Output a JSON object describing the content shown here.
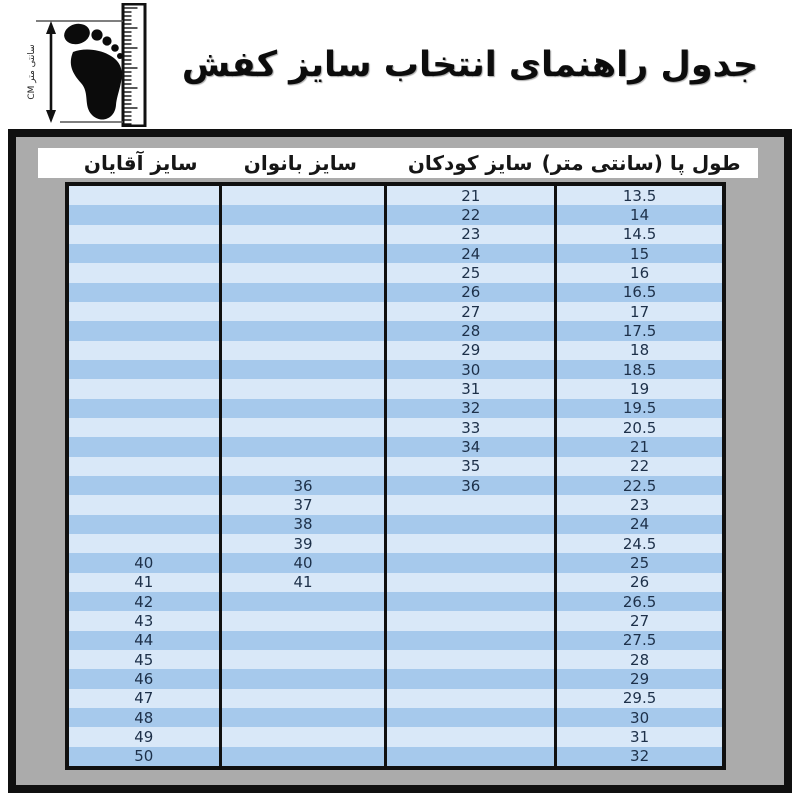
{
  "title": "جدول راهنمای انتخاب سایز کفش",
  "measure_icon": {
    "name": "foot-with-ruler",
    "cm_label": "CM سانتی متر"
  },
  "colors": {
    "row_light": "#d9e8f8",
    "row_dark": "#a6c9ec",
    "frame_gray": "#ababab",
    "border_black": "#101010",
    "number_text": "#1d3049"
  },
  "table": {
    "headers": [
      {
        "key": "foot",
        "label": "طول پا (سانتی متر)"
      },
      {
        "key": "kids",
        "label": "سایز کودکان"
      },
      {
        "key": "women",
        "label": "سایز بانوان"
      },
      {
        "key": "men",
        "label": "سایز آقایان"
      }
    ],
    "rows": [
      {
        "foot": "13.5",
        "kids": "21",
        "women": "",
        "men": ""
      },
      {
        "foot": "14",
        "kids": "22",
        "women": "",
        "men": ""
      },
      {
        "foot": "14.5",
        "kids": "23",
        "women": "",
        "men": ""
      },
      {
        "foot": "15",
        "kids": "24",
        "women": "",
        "men": ""
      },
      {
        "foot": "16",
        "kids": "25",
        "women": "",
        "men": ""
      },
      {
        "foot": "16.5",
        "kids": "26",
        "women": "",
        "men": ""
      },
      {
        "foot": "17",
        "kids": "27",
        "women": "",
        "men": ""
      },
      {
        "foot": "17.5",
        "kids": "28",
        "women": "",
        "men": ""
      },
      {
        "foot": "18",
        "kids": "29",
        "women": "",
        "men": ""
      },
      {
        "foot": "18.5",
        "kids": "30",
        "women": "",
        "men": ""
      },
      {
        "foot": "19",
        "kids": "31",
        "women": "",
        "men": ""
      },
      {
        "foot": "19.5",
        "kids": "32",
        "women": "",
        "men": ""
      },
      {
        "foot": "20.5",
        "kids": "33",
        "women": "",
        "men": ""
      },
      {
        "foot": "21",
        "kids": "34",
        "women": "",
        "men": ""
      },
      {
        "foot": "22",
        "kids": "35",
        "women": "",
        "men": ""
      },
      {
        "foot": "22.5",
        "kids": "36",
        "women": "36",
        "men": ""
      },
      {
        "foot": "23",
        "kids": "",
        "women": "37",
        "men": ""
      },
      {
        "foot": "24",
        "kids": "",
        "women": "38",
        "men": ""
      },
      {
        "foot": "24.5",
        "kids": "",
        "women": "39",
        "men": ""
      },
      {
        "foot": "25",
        "kids": "",
        "women": "40",
        "men": "40"
      },
      {
        "foot": "26",
        "kids": "",
        "women": "41",
        "men": "41"
      },
      {
        "foot": "26.5",
        "kids": "",
        "women": "",
        "men": "42"
      },
      {
        "foot": "27",
        "kids": "",
        "women": "",
        "men": "43"
      },
      {
        "foot": "27.5",
        "kids": "",
        "women": "",
        "men": "44"
      },
      {
        "foot": "28",
        "kids": "",
        "women": "",
        "men": "45"
      },
      {
        "foot": "29",
        "kids": "",
        "women": "",
        "men": "46"
      },
      {
        "foot": "29.5",
        "kids": "",
        "women": "",
        "men": "47"
      },
      {
        "foot": "30",
        "kids": "",
        "women": "",
        "men": "48"
      },
      {
        "foot": "31",
        "kids": "",
        "women": "",
        "men": "49"
      },
      {
        "foot": "32",
        "kids": "",
        "women": "",
        "men": "50"
      }
    ]
  },
  "chart_data": {
    "type": "table",
    "title": "جدول راهنمای انتخاب سایز کفش",
    "columns": [
      "طول پا (سانتی متر)",
      "سایز کودکان",
      "سایز بانوان",
      "سایز آقایان"
    ],
    "rows": [
      [
        "13.5",
        "21",
        "",
        ""
      ],
      [
        "14",
        "22",
        "",
        ""
      ],
      [
        "14.5",
        "23",
        "",
        ""
      ],
      [
        "15",
        "24",
        "",
        ""
      ],
      [
        "16",
        "25",
        "",
        ""
      ],
      [
        "16.5",
        "26",
        "",
        ""
      ],
      [
        "17",
        "27",
        "",
        ""
      ],
      [
        "17.5",
        "28",
        "",
        ""
      ],
      [
        "18",
        "29",
        "",
        ""
      ],
      [
        "18.5",
        "30",
        "",
        ""
      ],
      [
        "19",
        "31",
        "",
        ""
      ],
      [
        "19.5",
        "32",
        "",
        ""
      ],
      [
        "20.5",
        "33",
        "",
        ""
      ],
      [
        "21",
        "34",
        "",
        ""
      ],
      [
        "22",
        "35",
        "",
        ""
      ],
      [
        "22.5",
        "36",
        "36",
        ""
      ],
      [
        "23",
        "",
        "37",
        ""
      ],
      [
        "24",
        "",
        "38",
        ""
      ],
      [
        "24.5",
        "",
        "39",
        ""
      ],
      [
        "25",
        "",
        "40",
        "40"
      ],
      [
        "26",
        "",
        "41",
        "41"
      ],
      [
        "26.5",
        "",
        "",
        "42"
      ],
      [
        "27",
        "",
        "",
        "43"
      ],
      [
        "27.5",
        "",
        "",
        "44"
      ],
      [
        "28",
        "",
        "",
        "45"
      ],
      [
        "29",
        "",
        "",
        "46"
      ],
      [
        "29.5",
        "",
        "",
        "47"
      ],
      [
        "30",
        "",
        "",
        "48"
      ],
      [
        "31",
        "",
        "",
        "49"
      ],
      [
        "32",
        "",
        "",
        "50"
      ]
    ]
  }
}
